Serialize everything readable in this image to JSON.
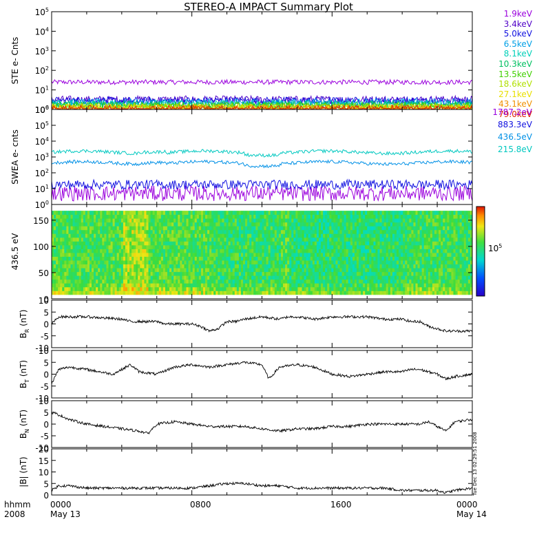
{
  "title": "STEREO-A IMPACT Summary Plot",
  "x_axis": {
    "time_label": "hhmm",
    "year_label": "2008",
    "ticks": [
      "0000",
      "0800",
      "1600",
      "0000"
    ],
    "dates": [
      "May 13",
      "May 14"
    ]
  },
  "timestamp": "Tue Dec 13 02:29:51 2008",
  "chart_data": [
    {
      "type": "line",
      "ylabel": "STE e- Cnts",
      "yscale": "log",
      "ylim": [
        1,
        100000
      ],
      "ytick_labels": [
        "10^0",
        "10^1",
        "10^2",
        "10^3",
        "10^4",
        "10^5"
      ],
      "xlim_hours": [
        0,
        24
      ],
      "series": [
        {
          "name": "1.9keV",
          "color": "#9a00dd",
          "level": 25
        },
        {
          "name": "3.4keV",
          "color": "#5000c8",
          "level": 3.2
        },
        {
          "name": "5.0keV",
          "color": "#1010e0",
          "level": 2.8
        },
        {
          "name": "6.5keV",
          "color": "#00a0e6",
          "level": 2.3
        },
        {
          "name": "8.1keV",
          "color": "#00d0b8",
          "level": 1.9
        },
        {
          "name": "10.3keV",
          "color": "#00c060",
          "level": 1.7
        },
        {
          "name": "13.5keV",
          "color": "#40d000",
          "level": 1.5
        },
        {
          "name": "18.6keV",
          "color": "#b0e000",
          "level": 1.35
        },
        {
          "name": "27.1keV",
          "color": "#e8e000",
          "level": 1.2
        },
        {
          "name": "43.1keV",
          "color": "#f09000",
          "level": 1.12
        },
        {
          "name": "79.0keV",
          "color": "#e02000",
          "level": 1.05
        }
      ]
    },
    {
      "type": "line",
      "ylabel": "SWEA e- cnts",
      "yscale": "log",
      "ylim": [
        1,
        1000000
      ],
      "ytick_labels": [
        "10^0",
        "10^1",
        "10^2",
        "10^3",
        "10^4",
        "10^5",
        "10^6"
      ],
      "xlim_hours": [
        0,
        24
      ],
      "series": [
        {
          "name": "1787.2eV",
          "color": "#9a00dd",
          "level": 5
        },
        {
          "name": "883.3eV",
          "color": "#1010e0",
          "level": 18
        },
        {
          "name": "436.5eV",
          "color": "#0090e6",
          "level": 420
        },
        {
          "name": "215.8eV",
          "color": "#00c8c0",
          "level": 2000
        }
      ]
    },
    {
      "type": "heatmap",
      "ylabel": "436.5 eV",
      "ylim": [
        0,
        180
      ],
      "yticks": [
        0,
        50,
        100,
        150
      ],
      "colorbar_label": "10^5",
      "xlim_hours": [
        0,
        24
      ]
    },
    {
      "type": "line",
      "ylabel": "B_R (nT)",
      "ylim": [
        -10,
        10
      ],
      "yticks": [
        -10,
        -5,
        0,
        5,
        10
      ],
      "x_hours": [
        0,
        0.4,
        2,
        4,
        4.5,
        6,
        6.5,
        8,
        8.5,
        9,
        9.5,
        10,
        10.5,
        11,
        12,
        13,
        13.5,
        14,
        15,
        16,
        17,
        18,
        19,
        20,
        20.5,
        21,
        21.5,
        22,
        22.5,
        23,
        24
      ],
      "values": [
        0,
        3,
        3,
        2,
        1,
        1,
        0,
        0,
        -1,
        -3,
        -2,
        1,
        1,
        2,
        3,
        2,
        3,
        3,
        2,
        3,
        3,
        3,
        2,
        2,
        1,
        1,
        -1,
        -2,
        -3,
        -3,
        -3
      ]
    },
    {
      "type": "line",
      "ylabel": "B_T (nT)",
      "ylim": [
        -10,
        10
      ],
      "yticks": [
        -10,
        -5,
        0,
        5,
        10
      ],
      "x_hours": [
        0,
        0.4,
        1,
        2,
        3.5,
        4.5,
        5,
        6,
        7,
        8,
        9,
        10,
        11,
        12,
        12.4,
        13,
        14,
        15,
        16,
        17,
        18,
        19,
        20,
        20.5,
        21,
        21.5,
        22,
        22.5,
        23,
        24
      ],
      "values": [
        -4,
        2,
        3,
        2,
        0,
        4,
        1,
        0,
        3,
        4,
        3,
        4,
        5,
        4,
        -2,
        3,
        4,
        3,
        0,
        -1,
        0,
        1,
        1,
        2,
        2,
        1,
        0,
        -2,
        -1,
        0
      ]
    },
    {
      "type": "line",
      "ylabel": "B_N (nT)",
      "ylim": [
        -10,
        10
      ],
      "yticks": [
        -10,
        -5,
        0,
        5,
        10
      ],
      "x_hours": [
        0,
        0.4,
        1,
        2,
        3,
        4,
        5,
        5.5,
        6,
        7,
        8,
        9,
        10,
        11,
        12,
        13,
        14,
        15,
        16,
        17,
        18,
        19,
        20,
        21,
        21.5,
        22,
        22.5,
        23,
        24
      ],
      "values": [
        5,
        4,
        2,
        0,
        -1,
        -2,
        -3,
        -4,
        0,
        1,
        0,
        -1,
        -1,
        -1,
        -2,
        -3,
        -2,
        -2,
        -1,
        -1,
        0,
        0,
        0,
        0,
        1,
        -1,
        -3,
        1,
        2
      ]
    },
    {
      "type": "line",
      "ylabel": "|B| (nT)",
      "ylim": [
        0,
        20
      ],
      "yticks": [
        0,
        5,
        10,
        15,
        20
      ],
      "x_hours": [
        0,
        0.4,
        1,
        2,
        4,
        6,
        8,
        9,
        10,
        11,
        12,
        13,
        14,
        15,
        16,
        17,
        18,
        19,
        20,
        21,
        21.5,
        22,
        22.5,
        23,
        24
      ],
      "values": [
        2,
        4,
        4,
        3,
        3,
        3,
        3,
        4,
        5,
        5,
        4,
        4,
        3,
        3,
        3,
        3,
        3,
        3,
        2,
        2,
        2,
        2,
        1,
        2,
        3
      ]
    }
  ]
}
